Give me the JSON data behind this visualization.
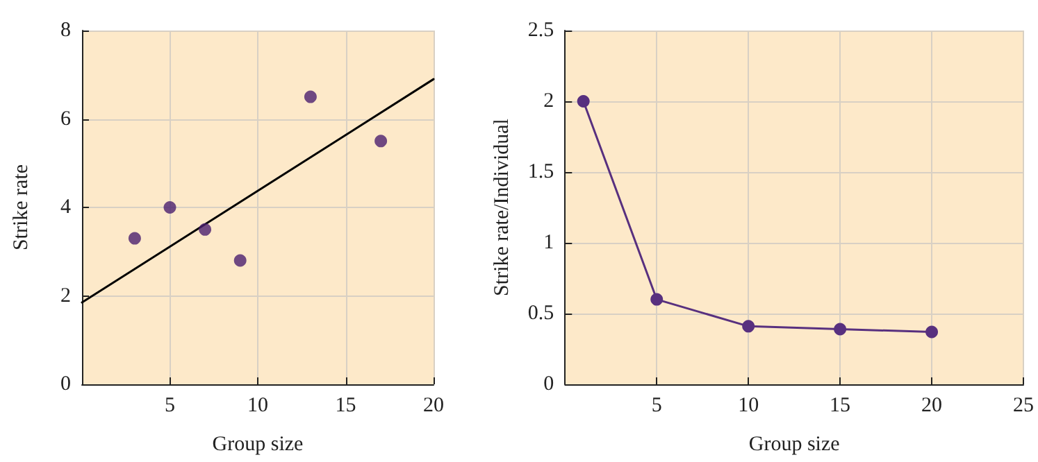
{
  "chart_data": [
    {
      "type": "scatter",
      "xlabel": "Group size",
      "ylabel": "Strike rate",
      "xlim": [
        0,
        20
      ],
      "ylim": [
        0,
        8
      ],
      "xticks": [
        5,
        10,
        15,
        20
      ],
      "yticks": [
        0,
        2,
        4,
        6,
        8
      ],
      "grid": true,
      "marker": "circle",
      "series": [
        {
          "color": "#4b1f6f",
          "x": [
            3,
            5,
            7,
            9,
            13,
            17
          ],
          "values": [
            3.3,
            4.0,
            3.5,
            2.8,
            6.5,
            5.5
          ]
        },
        {
          "type": "line",
          "color": "#000000",
          "marker": "none",
          "x": [
            0,
            20
          ],
          "values": [
            1.85,
            6.9
          ]
        }
      ]
    },
    {
      "type": "line",
      "xlabel": "Group size",
      "ylabel": "Strike rate/Individual",
      "xlim": [
        0,
        25
      ],
      "ylim": [
        0,
        2.5
      ],
      "xticks": [
        5,
        10,
        15,
        20,
        25
      ],
      "yticks": [
        0,
        0.5,
        1,
        1.5,
        2,
        2.5
      ],
      "grid": true,
      "marker": "circle",
      "line_style": "solid",
      "series": [
        {
          "color": "#58307f",
          "x": [
            1,
            5,
            10,
            15,
            20
          ],
          "values": [
            2.0,
            0.6,
            0.41,
            0.39,
            0.37
          ]
        }
      ]
    }
  ]
}
